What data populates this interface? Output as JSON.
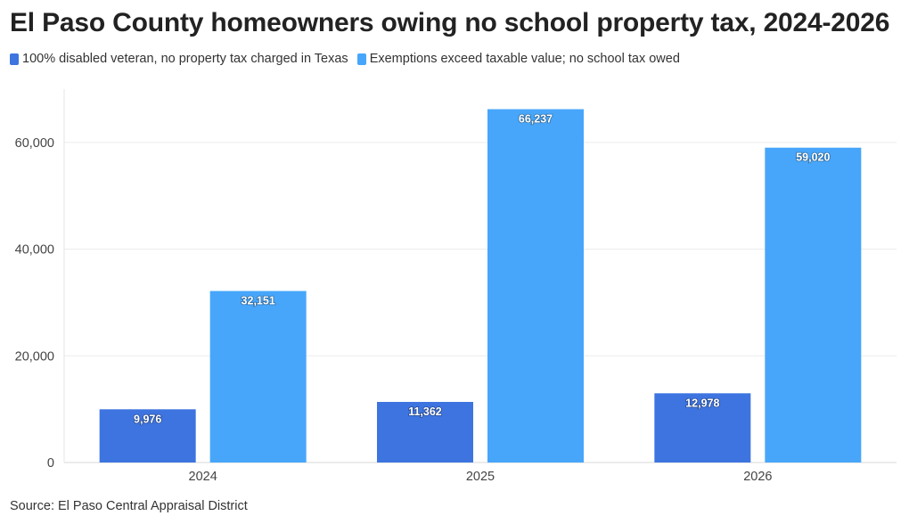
{
  "chart_data": {
    "type": "bar",
    "title": "El Paso County homeowners owing no school property tax, 2024-2026",
    "categories": [
      "2024",
      "2025",
      "2026"
    ],
    "series": [
      {
        "name": "100% disabled veteran, no property tax charged in Texas",
        "color": "#3d74e0",
        "values": [
          9976,
          11362,
          12978
        ],
        "labels": [
          "9,976",
          "11,362",
          "12,978"
        ]
      },
      {
        "name": "Exemptions exceed taxable value; no school tax owed",
        "color": "#47a6fa",
        "values": [
          32151,
          66237,
          59020
        ],
        "labels": [
          "32,151",
          "66,237",
          "59,020"
        ]
      }
    ],
    "y_ticks": [
      0,
      20000,
      40000,
      60000
    ],
    "y_tick_labels": [
      "0",
      "20,000",
      "40,000",
      "60,000"
    ],
    "ylim": [
      0,
      70000
    ],
    "grid": true,
    "legend_position": "top-left"
  },
  "source": "Source: El Paso Central Appraisal District"
}
